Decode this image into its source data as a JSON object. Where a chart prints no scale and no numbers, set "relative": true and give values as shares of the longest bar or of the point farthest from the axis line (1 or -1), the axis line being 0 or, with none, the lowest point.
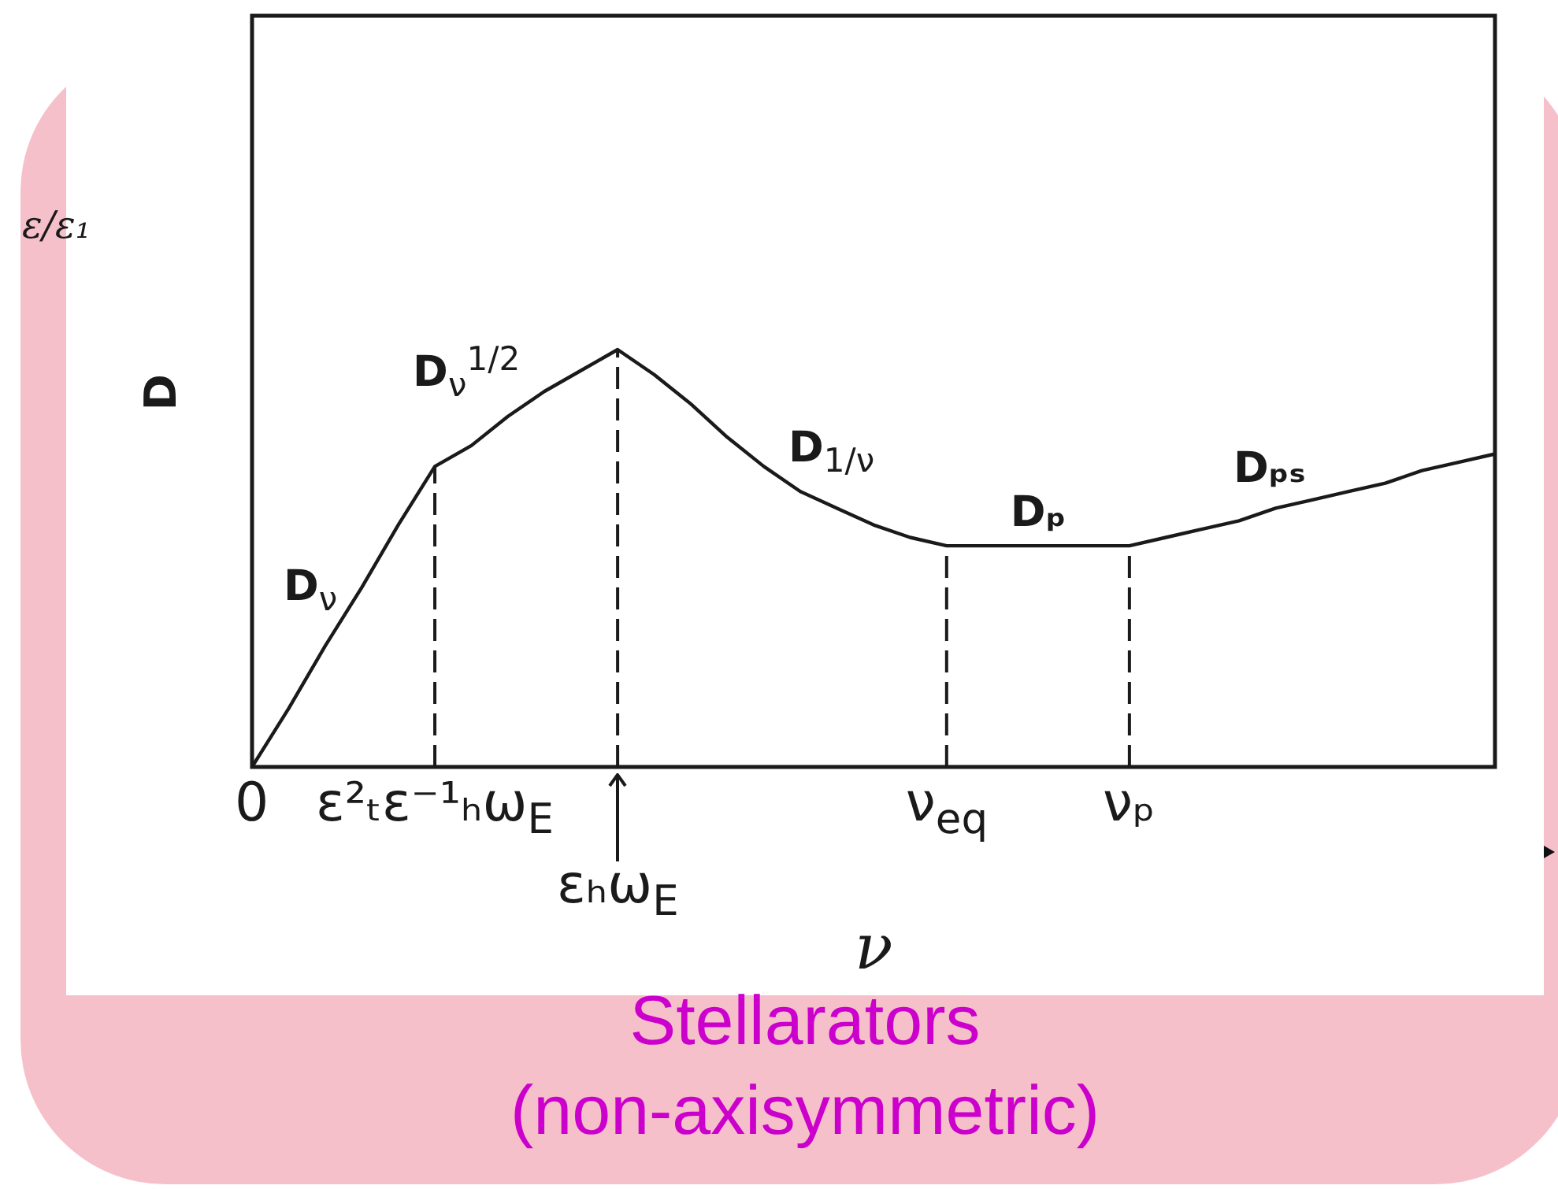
{
  "chart_data": {
    "type": "line",
    "title": "Stellarators (non-axisymmetric)",
    "xlabel": "ν",
    "ylabel": "D",
    "relative": true,
    "tick_labels": "x",
    "marker": "none",
    "line_style": "solid",
    "categories": [
      "0",
      null,
      null,
      null,
      null,
      "ε²ₜε⁻¹ₕω$_{E}$",
      null,
      null,
      null,
      null,
      "εₕω$_{E}$",
      null,
      null,
      null,
      null,
      null,
      null,
      null,
      null,
      "ν$_{eq}$",
      null,
      null,
      null,
      null,
      "νₚ",
      null,
      null,
      null,
      null,
      null,
      null,
      null,
      null,
      null,
      null
    ],
    "series": [
      {
        "color": "#1a1a1a",
        "values": [
          0,
          0.14,
          0.29,
          0.43,
          0.58,
          0.72,
          0.77,
          0.84,
          0.9,
          0.95,
          1,
          0.94,
          0.87,
          0.79,
          0.72,
          0.66,
          0.62,
          0.58,
          0.55,
          0.53,
          0.53,
          0.53,
          0.53,
          0.53,
          0.53,
          0.55,
          0.57,
          0.59,
          0.62,
          0.64,
          0.66,
          0.68,
          0.71,
          0.73,
          0.75
        ]
      }
    ],
    "ref_lines": [
      {
        "axis": "x",
        "value": "ε²ₜε⁻¹ₕω$_{E}$",
        "line_style": "dashed",
        "color": "#1a1a1a"
      },
      {
        "axis": "x",
        "value": "εₕω$_{E}$",
        "line_style": "dashed",
        "color": "#1a1a1a"
      },
      {
        "axis": "x",
        "value": "ν$_{eq}$",
        "line_style": "dashed",
        "color": "#1a1a1a"
      },
      {
        "axis": "x",
        "value": "νₚ",
        "line_style": "dashed",
        "color": "#1a1a1a"
      }
    ],
    "annotations": [
      "D$_{ν}$",
      "D$_{ν}$$^{1/2}$",
      "D$_{1/ν}$",
      "Dₚ",
      "Dₚₛ",
      "ε/ε₁"
    ]
  }
}
